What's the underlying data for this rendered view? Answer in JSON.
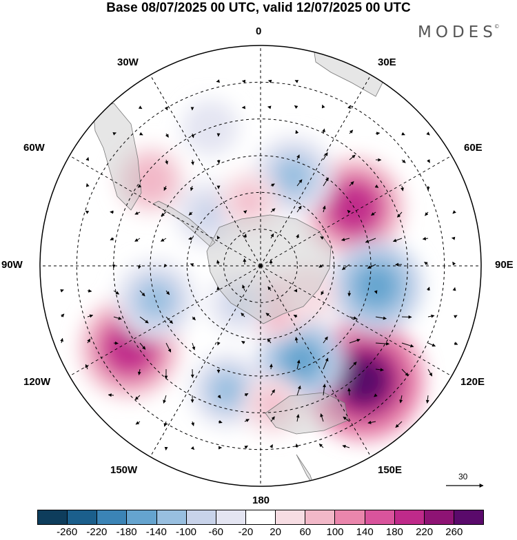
{
  "title": "Base 08/07/2025 00 UTC, valid 12/07/2025 00 UTC",
  "brand": "MODES",
  "brand_mark": "©",
  "longitude_labels": {
    "top": "0",
    "e30": "30E",
    "e60": "60E",
    "e90": "90E",
    "e120": "120E",
    "e150": "150E",
    "bottom": "180",
    "w150": "150W",
    "w120": "120W",
    "w90": "90W",
    "w60": "60W",
    "w30": "30W"
  },
  "reference_vector": {
    "value": "30"
  },
  "colorbar": {
    "colors": [
      "#0e3d5c",
      "#1b5f8c",
      "#3b84b6",
      "#65a4cf",
      "#98bfe0",
      "#c8d3ea",
      "#e4e5f2",
      "#ffffff",
      "#f7dde3",
      "#f2b8c8",
      "#ea86ac",
      "#d9549c",
      "#bf2a8a",
      "#8e1374",
      "#5a0a6b"
    ],
    "ticks": [
      "-260",
      "-220",
      "-180",
      "-140",
      "-100",
      "-60",
      "-20",
      "20",
      "60",
      "100",
      "140",
      "180",
      "220",
      "260"
    ]
  },
  "anomaly_cells": [
    {
      "lon": 138,
      "colat": 42,
      "value": 260
    },
    {
      "lon": 58,
      "colat": 30,
      "value": 190
    },
    {
      "lon": 100,
      "colat": 32,
      "value": -170
    },
    {
      "lon": 157,
      "colat": 28,
      "value": -150
    },
    {
      "lon": -122,
      "colat": 42,
      "value": 190
    },
    {
      "lon": -108,
      "colat": 30,
      "value": -130
    },
    {
      "lon": -52,
      "colat": 38,
      "value": 90
    },
    {
      "lon": -20,
      "colat": 40,
      "value": -50
    },
    {
      "lon": 20,
      "colat": 26,
      "value": -130
    },
    {
      "lon": -45,
      "colat": 20,
      "value": -80
    },
    {
      "lon": 160,
      "colat": 12,
      "value": 80
    },
    {
      "lon": -165,
      "colat": 35,
      "value": -110
    },
    {
      "lon": 175,
      "colat": 38,
      "value": 60
    },
    {
      "lon": -10,
      "colat": 18,
      "value": 60
    },
    {
      "lon": -150,
      "colat": 12,
      "value": -60
    },
    {
      "lon": 120,
      "colat": 15,
      "value": 50
    }
  ]
}
